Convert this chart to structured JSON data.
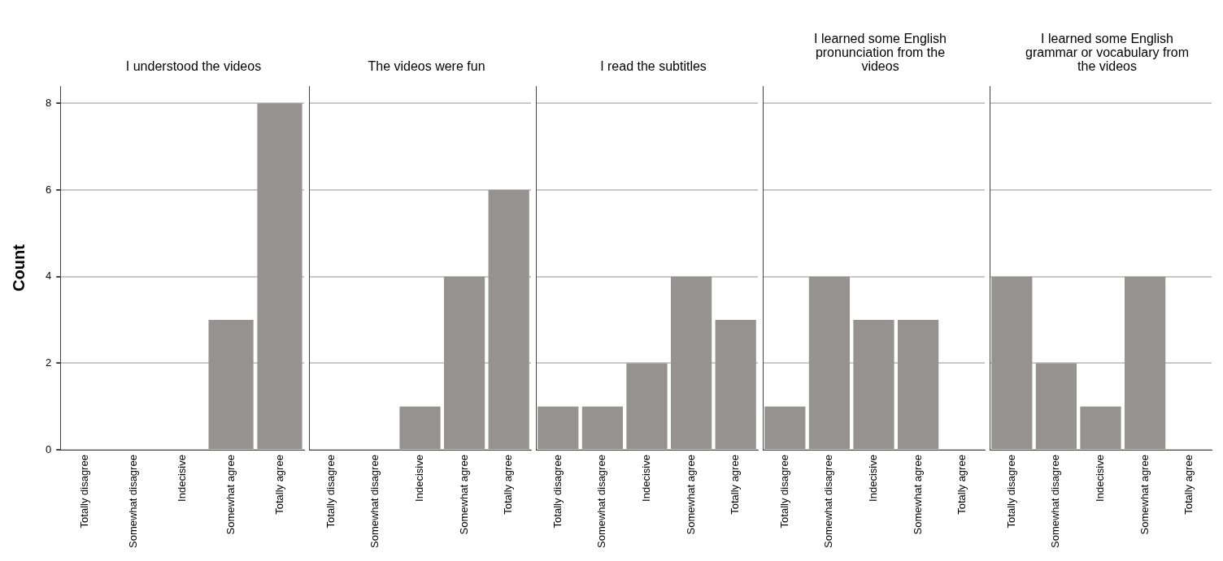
{
  "chart_data": [
    {
      "type": "bar",
      "title": "I understood the videos",
      "ylabel": "Count",
      "categories": [
        "Totally disagree",
        "Somewhat disagree",
        "Indecisive",
        "Somewhat agree",
        "Totally agree"
      ],
      "values": [
        0,
        0,
        0,
        3,
        8
      ],
      "color": "#969291",
      "ylim": [
        0,
        8.4
      ],
      "yticks": [
        0,
        2,
        4,
        6,
        8
      ],
      "grid": "y",
      "legend": false
    },
    {
      "type": "bar",
      "title": "The videos were fun",
      "categories": [
        "Totally disagree",
        "Somewhat disagree",
        "Indecisive",
        "Somewhat agree",
        "Totally agree"
      ],
      "values": [
        0,
        0,
        1,
        4,
        6
      ],
      "color": "#969291",
      "ylim": [
        0,
        8.4
      ],
      "yticks": [
        0,
        2,
        4,
        6,
        8
      ],
      "grid": "y",
      "legend": false,
      "tick_labels": "x"
    },
    {
      "type": "bar",
      "title": "I read the subtitles",
      "categories": [
        "Totally disagree",
        "Somewhat disagree",
        "Indecisive",
        "Somewhat agree",
        "Totally agree"
      ],
      "values": [
        1,
        1,
        2,
        4,
        3
      ],
      "color": "#969291",
      "ylim": [
        0,
        8.4
      ],
      "yticks": [
        0,
        2,
        4,
        6,
        8
      ],
      "grid": "y",
      "legend": false,
      "tick_labels": "x"
    },
    {
      "type": "bar",
      "title": "I learned some English pronunciation from the videos",
      "categories": [
        "Totally disagree",
        "Somewhat disagree",
        "Indecisive",
        "Somewhat agree",
        "Totally agree"
      ],
      "values": [
        1,
        4,
        3,
        3,
        0
      ],
      "color": "#969291",
      "ylim": [
        0,
        8.4
      ],
      "yticks": [
        0,
        2,
        4,
        6,
        8
      ],
      "grid": "y",
      "legend": false,
      "tick_labels": "x"
    },
    {
      "type": "bar",
      "title": "I learned some English grammar or vocabulary from the videos",
      "categories": [
        "Totally disagree",
        "Somewhat disagree",
        "Indecisive",
        "Somewhat agree",
        "Totally agree"
      ],
      "values": [
        4,
        2,
        1,
        4,
        0
      ],
      "color": "#969291",
      "ylim": [
        0,
        8.4
      ],
      "yticks": [
        0,
        2,
        4,
        6,
        8
      ],
      "grid": "y",
      "legend": false,
      "tick_labels": "x"
    }
  ]
}
